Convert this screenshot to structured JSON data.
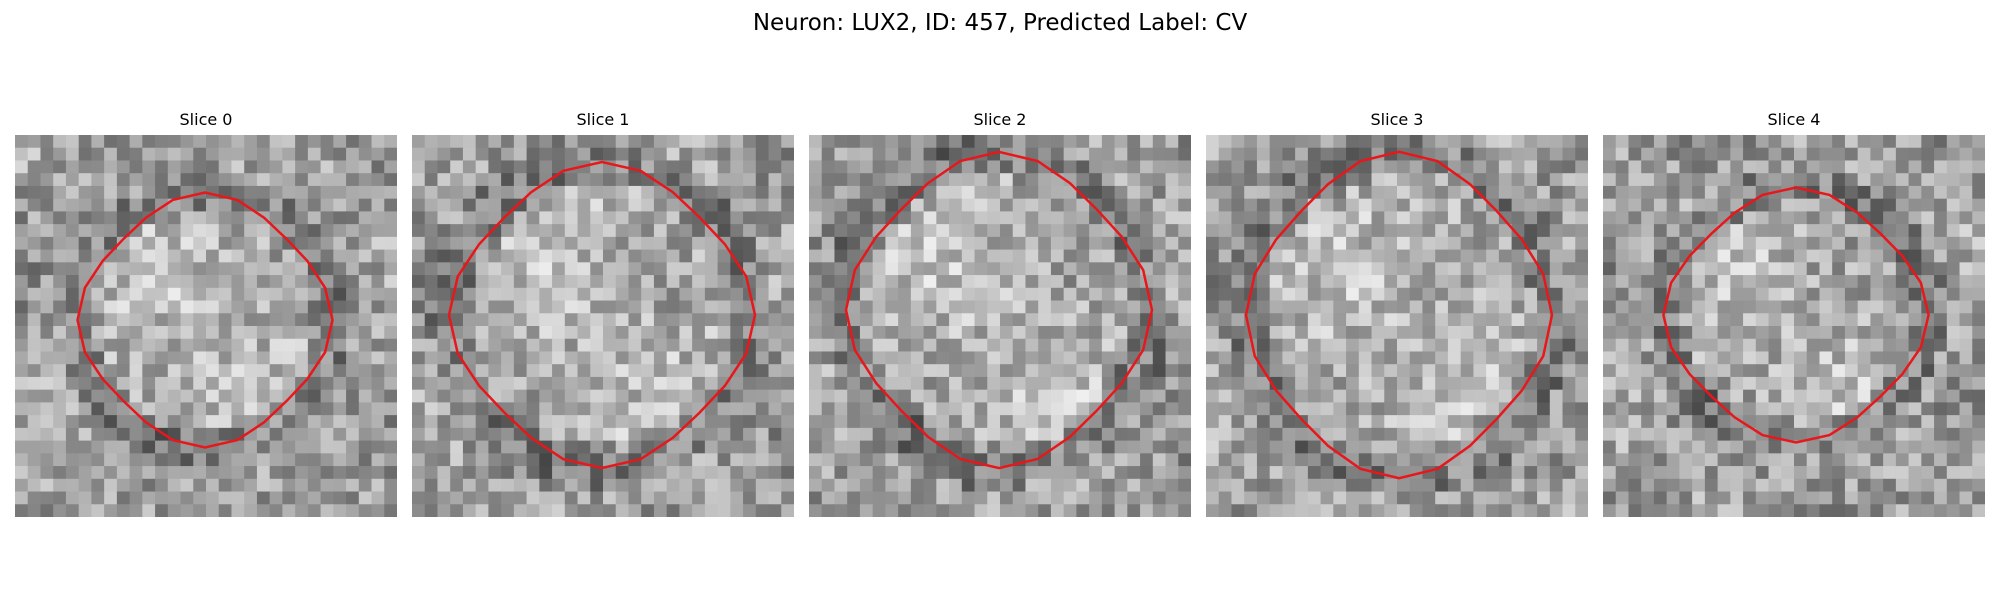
{
  "figure": {
    "title": "Neuron: LUX2, ID: 457, Predicted Label: CV"
  },
  "colors": {
    "outline": "#e8171b",
    "background": "#ffffff"
  },
  "panels": [
    {
      "title": "Slice 0",
      "seed": 11
    },
    {
      "title": "Slice 1",
      "seed": 23
    },
    {
      "title": "Slice 2",
      "seed": 37
    },
    {
      "title": "Slice 3",
      "seed": 51
    },
    {
      "title": "Slice 4",
      "seed": 67
    }
  ]
}
